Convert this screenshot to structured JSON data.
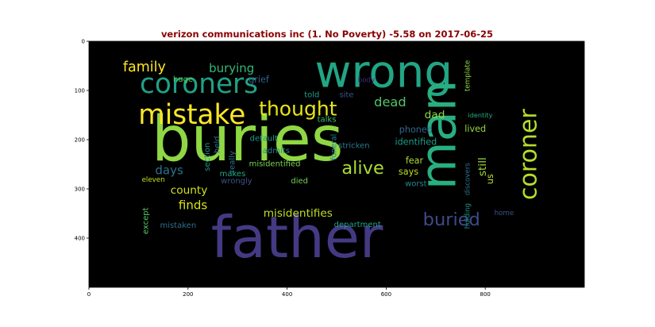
{
  "chart_data": {
    "type": "wordcloud",
    "title": "verizon communications inc (1. No Poverty) -5.58 on 2017-06-25",
    "xlim": [
      0,
      1000
    ],
    "ylim": [
      500,
      0
    ],
    "xticks": [
      0,
      200,
      400,
      600,
      800
    ],
    "yticks": [
      0,
      100,
      200,
      300,
      400
    ],
    "background": "#000000",
    "title_color": "#8b0000",
    "words": [
      {
        "text": "buries",
        "x": 320,
        "y": 200,
        "size": 125,
        "color": "#8fd744",
        "rotate": 0
      },
      {
        "text": "father",
        "x": 420,
        "y": 398,
        "size": 115,
        "color": "#443a83",
        "rotate": 0
      },
      {
        "text": "wrong",
        "x": 595,
        "y": 63,
        "size": 90,
        "color": "#21a685",
        "rotate": 0
      },
      {
        "text": "man",
        "x": 705,
        "y": 190,
        "size": 100,
        "color": "#29af7f",
        "rotate": -90
      },
      {
        "text": "coroners",
        "x": 222,
        "y": 87,
        "size": 55,
        "color": "#1fa187",
        "rotate": 0
      },
      {
        "text": "mistake",
        "x": 208,
        "y": 150,
        "size": 55,
        "color": "#fde725",
        "rotate": 0
      },
      {
        "text": "thought",
        "x": 422,
        "y": 137,
        "size": 40,
        "color": "#e5e419",
        "rotate": 0
      },
      {
        "text": "coroner",
        "x": 888,
        "y": 230,
        "size": 48,
        "color": "#b5de2b",
        "rotate": -90
      },
      {
        "text": "alive",
        "x": 553,
        "y": 258,
        "size": 36,
        "color": "#addc30",
        "rotate": 0
      },
      {
        "text": "buried",
        "x": 732,
        "y": 363,
        "size": 36,
        "color": "#3e4a89",
        "rotate": 0
      },
      {
        "text": "family",
        "x": 112,
        "y": 53,
        "size": 28,
        "color": "#fde725",
        "rotate": 0
      },
      {
        "text": "burying",
        "x": 288,
        "y": 55,
        "size": 24,
        "color": "#35b779",
        "rotate": 0
      },
      {
        "text": "finds",
        "x": 210,
        "y": 333,
        "size": 24,
        "color": "#d8e219",
        "rotate": 0
      },
      {
        "text": "misidentifies",
        "x": 422,
        "y": 350,
        "size": 22,
        "color": "#c0df25",
        "rotate": 0
      },
      {
        "text": "dead",
        "x": 608,
        "y": 123,
        "size": 26,
        "color": "#52c569",
        "rotate": 0
      },
      {
        "text": "county",
        "x": 202,
        "y": 303,
        "size": 22,
        "color": "#d0e11c",
        "rotate": 0
      },
      {
        "text": "days",
        "x": 162,
        "y": 262,
        "size": 24,
        "color": "#2c728e",
        "rotate": 0
      },
      {
        "text": "dad",
        "x": 698,
        "y": 150,
        "size": 22,
        "color": "#90d743",
        "rotate": 0
      },
      {
        "text": "grief",
        "x": 343,
        "y": 78,
        "size": 18,
        "color": "#33638d",
        "rotate": 0
      },
      {
        "text": "huge",
        "x": 190,
        "y": 78,
        "size": 16,
        "color": "#5ec962",
        "rotate": 0
      },
      {
        "text": "told",
        "x": 450,
        "y": 110,
        "size": 16,
        "color": "#1f9e89",
        "rotate": 0
      },
      {
        "text": "site",
        "x": 520,
        "y": 110,
        "size": 16,
        "color": "#3b528b",
        "rotate": 0
      },
      {
        "text": "body",
        "x": 560,
        "y": 80,
        "size": 14,
        "color": "#482878",
        "rotate": 0
      },
      {
        "text": "talks",
        "x": 480,
        "y": 160,
        "size": 16,
        "color": "#3fbc73",
        "rotate": 0
      },
      {
        "text": "phoned",
        "x": 660,
        "y": 180,
        "size": 18,
        "color": "#31688e",
        "rotate": 0
      },
      {
        "text": "lived",
        "x": 780,
        "y": 178,
        "size": 18,
        "color": "#95d840",
        "rotate": 0
      },
      {
        "text": "identity",
        "x": 790,
        "y": 150,
        "size": 13,
        "color": "#27ad81",
        "rotate": 0
      },
      {
        "text": "template",
        "x": 765,
        "y": 70,
        "size": 14,
        "color": "#8fd744",
        "rotate": -90
      },
      {
        "text": "funeral",
        "x": 495,
        "y": 215,
        "size": 15,
        "color": "#287c8e",
        "rotate": -90
      },
      {
        "text": "default",
        "x": 353,
        "y": 198,
        "size": 16,
        "color": "#1f9a8a",
        "rotate": 0
      },
      {
        "text": "admits",
        "x": 378,
        "y": 223,
        "size": 16,
        "color": "#25838e",
        "rotate": 0
      },
      {
        "text": "stricken",
        "x": 535,
        "y": 213,
        "size": 16,
        "color": "#2a788e",
        "rotate": 0
      },
      {
        "text": "identified",
        "x": 660,
        "y": 205,
        "size": 18,
        "color": "#1e9c89",
        "rotate": 0
      },
      {
        "text": "held",
        "x": 260,
        "y": 210,
        "size": 16,
        "color": "#2d708e",
        "rotate": -90
      },
      {
        "text": "section",
        "x": 240,
        "y": 235,
        "size": 16,
        "color": "#1f948c",
        "rotate": -90
      },
      {
        "text": "really",
        "x": 290,
        "y": 245,
        "size": 16,
        "color": "#2e6e8e",
        "rotate": -90
      },
      {
        "text": "makes",
        "x": 290,
        "y": 270,
        "size": 16,
        "color": "#22a884",
        "rotate": 0
      },
      {
        "text": "misidentified",
        "x": 375,
        "y": 250,
        "size": 16,
        "color": "#7ad151",
        "rotate": 0
      },
      {
        "text": "wrongly",
        "x": 298,
        "y": 285,
        "size": 16,
        "color": "#3b528b",
        "rotate": 0
      },
      {
        "text": "died",
        "x": 425,
        "y": 285,
        "size": 16,
        "color": "#70cf57",
        "rotate": 0
      },
      {
        "text": "fear",
        "x": 657,
        "y": 243,
        "size": 18,
        "color": "#addc30",
        "rotate": 0
      },
      {
        "text": "says",
        "x": 645,
        "y": 265,
        "size": 18,
        "color": "#c2df23",
        "rotate": 0
      },
      {
        "text": "still",
        "x": 795,
        "y": 255,
        "size": 22,
        "color": "#9bd93c",
        "rotate": -90
      },
      {
        "text": "us",
        "x": 810,
        "y": 280,
        "size": 18,
        "color": "#c5e021",
        "rotate": -90
      },
      {
        "text": "discovers",
        "x": 765,
        "y": 280,
        "size": 14,
        "color": "#2d708e",
        "rotate": -90
      },
      {
        "text": "holding",
        "x": 765,
        "y": 355,
        "size": 14,
        "color": "#20928c",
        "rotate": -90
      },
      {
        "text": "worst",
        "x": 660,
        "y": 290,
        "size": 16,
        "color": "#238a8d",
        "rotate": 0
      },
      {
        "text": "eleven",
        "x": 130,
        "y": 282,
        "size": 14,
        "color": "#c2df23",
        "rotate": 0
      },
      {
        "text": "except",
        "x": 115,
        "y": 365,
        "size": 16,
        "color": "#56c667",
        "rotate": -90
      },
      {
        "text": "mistaken",
        "x": 180,
        "y": 375,
        "size": 16,
        "color": "#2e6f8e",
        "rotate": 0
      },
      {
        "text": "department",
        "x": 542,
        "y": 373,
        "size": 16,
        "color": "#20a386",
        "rotate": 0
      },
      {
        "text": "home",
        "x": 838,
        "y": 350,
        "size": 14,
        "color": "#3b528b",
        "rotate": 0
      }
    ]
  }
}
